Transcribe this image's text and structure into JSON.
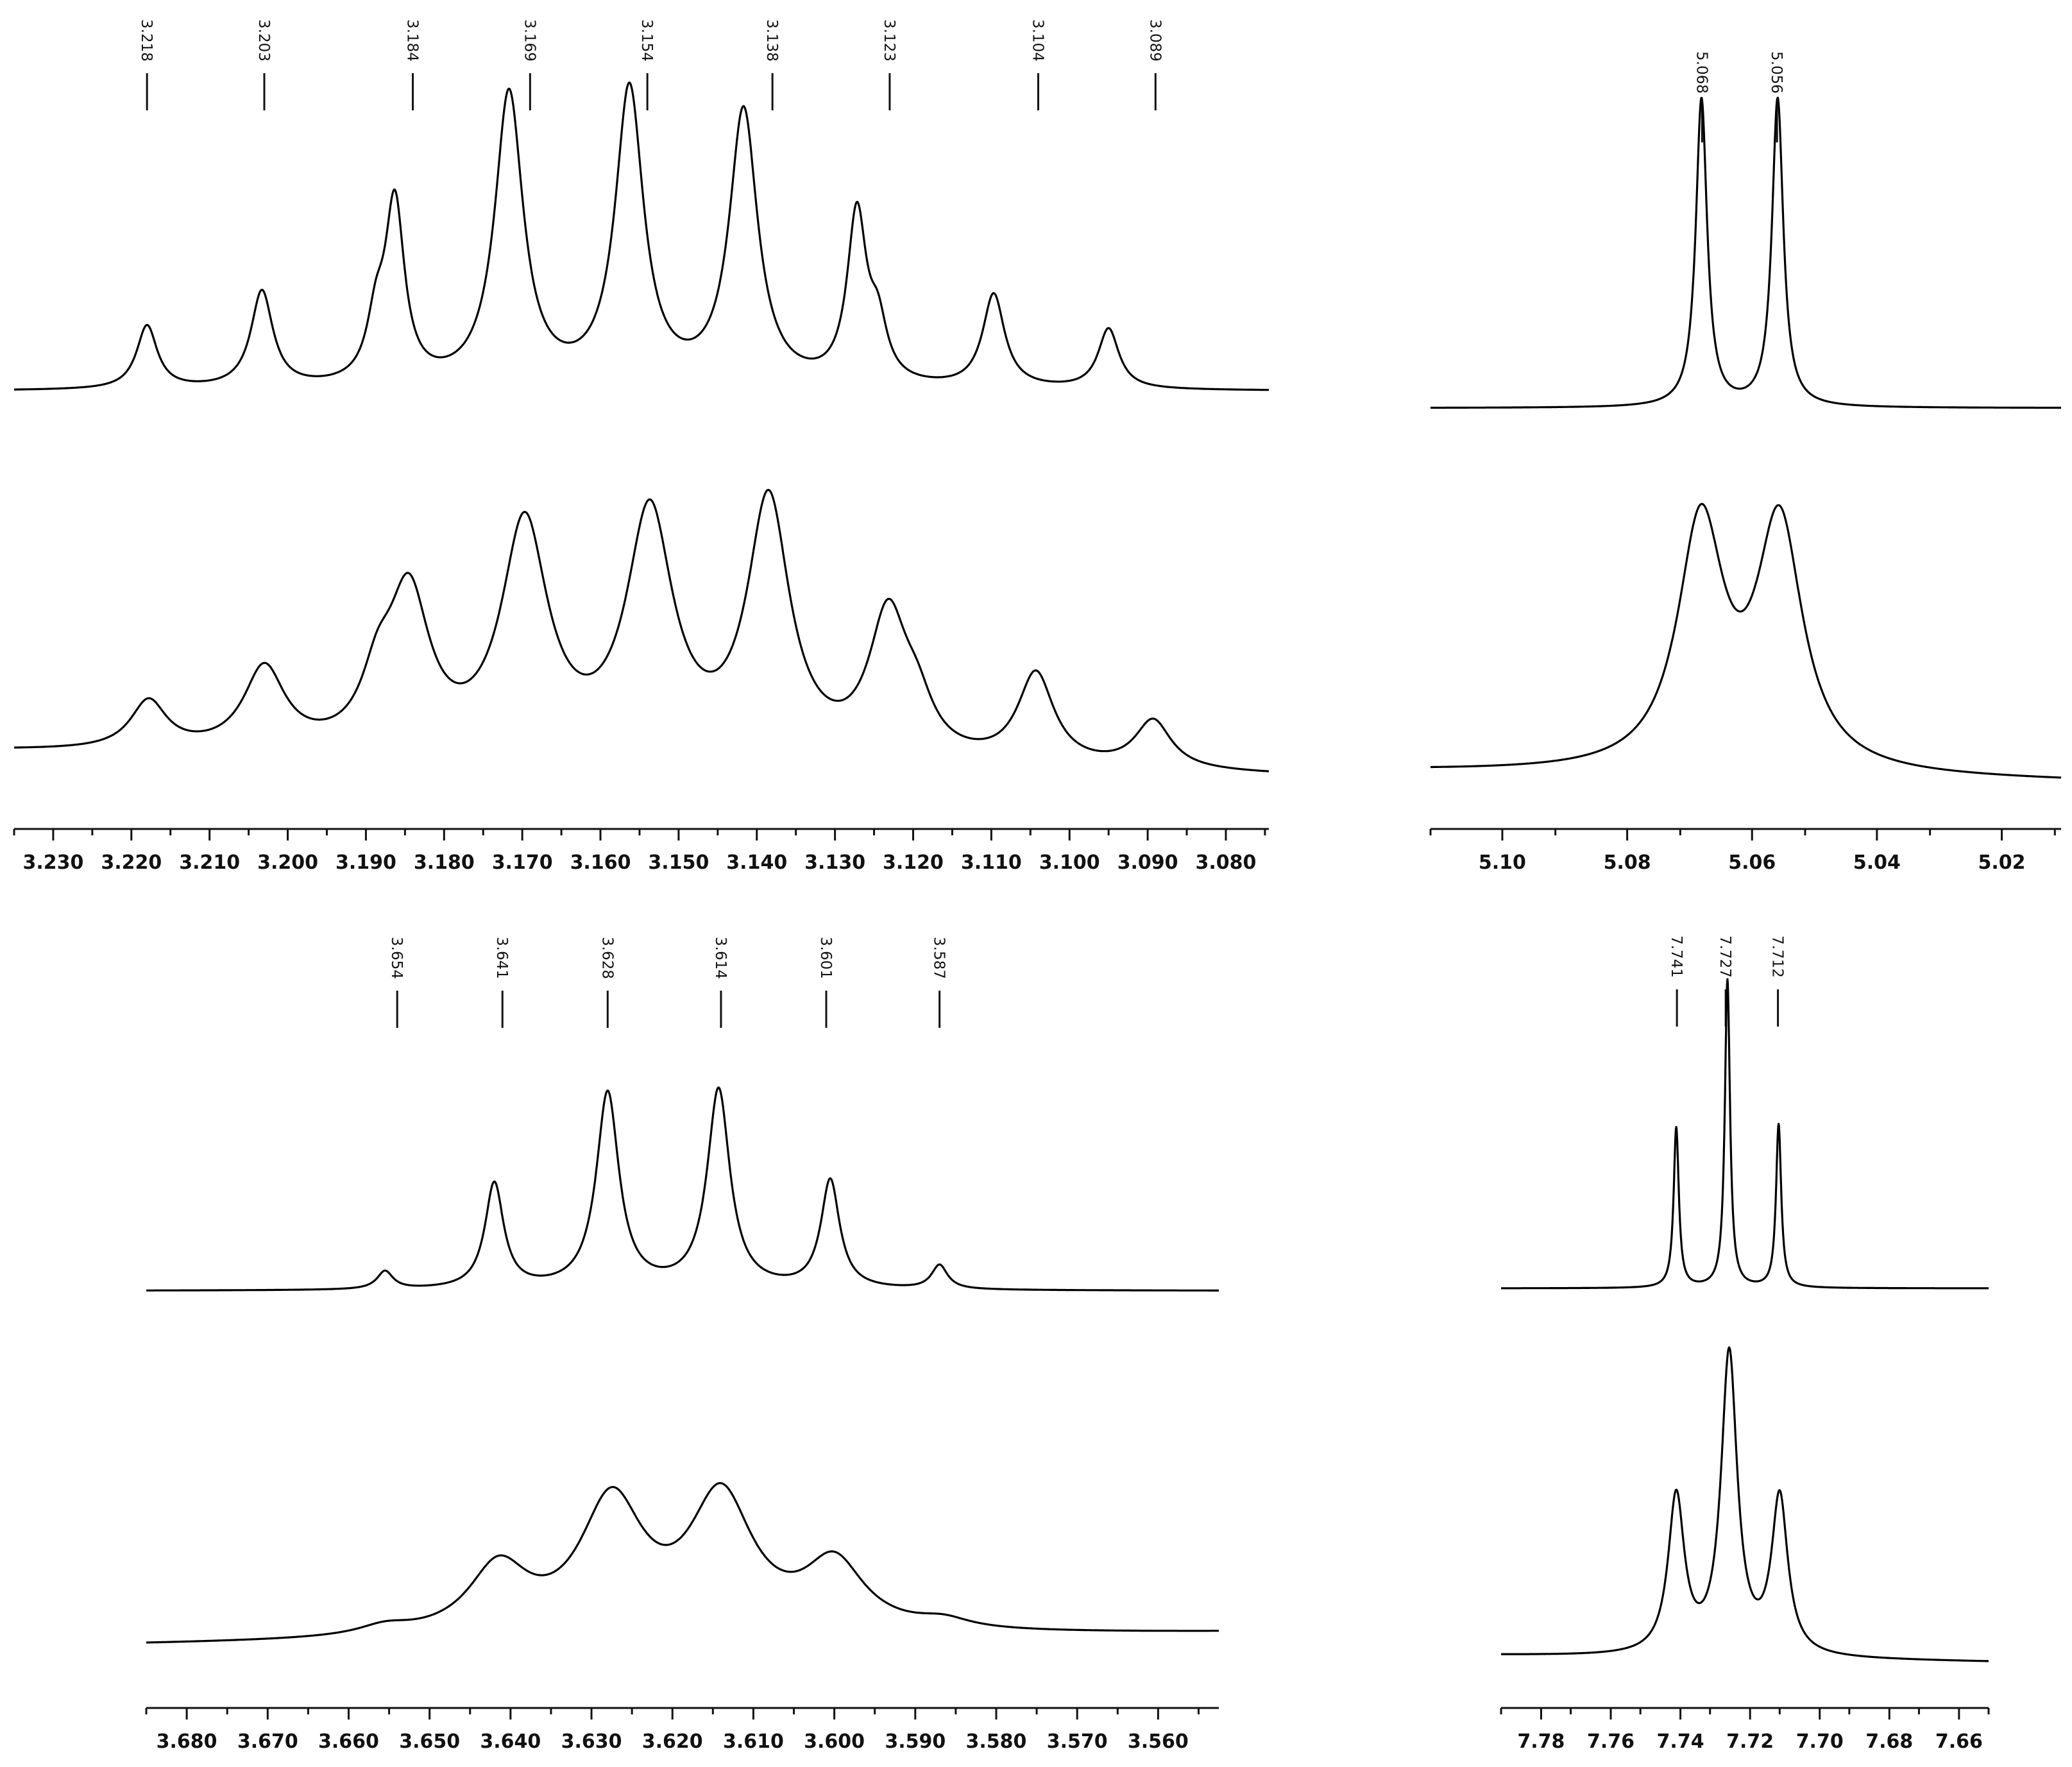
{
  "chart_data": [
    {
      "type": "line",
      "xlabel": "",
      "ylabel": "",
      "xlim": [
        3.235,
        3.0745
      ],
      "x_reversed": true,
      "tick_labels": [
        "3.230",
        "3.220",
        "3.210",
        "3.200",
        "3.190",
        "3.180",
        "3.170",
        "3.160",
        "3.150",
        "3.140",
        "3.130",
        "3.120",
        "3.110",
        "3.100",
        "3.090",
        "3.080"
      ],
      "peak_labels": [
        "3.218",
        "3.203",
        "3.184",
        "3.169",
        "3.154",
        "3.138",
        "3.123",
        "3.104",
        "3.089"
      ],
      "series": [
        {
          "baseline": 0.0,
          "peaks": [
            {
              "x": 3.218,
              "h": 0.21,
              "w": 0.0016
            },
            {
              "x": 3.2033,
              "h": 0.32,
              "w": 0.0017
            },
            {
              "x": 3.1887,
              "h": 0.18,
              "w": 0.0014
            },
            {
              "x": 3.1863,
              "h": 0.59,
              "w": 0.0015
            },
            {
              "x": 3.1717,
              "h": 0.97,
              "w": 0.0022
            },
            {
              "x": 3.1563,
              "h": 0.98,
              "w": 0.0022
            },
            {
              "x": 3.1417,
              "h": 0.91,
              "w": 0.0022
            },
            {
              "x": 3.1272,
              "h": 0.56,
              "w": 0.0015
            },
            {
              "x": 3.1245,
              "h": 0.17,
              "w": 0.0014
            },
            {
              "x": 3.1097,
              "h": 0.31,
              "w": 0.0017
            },
            {
              "x": 3.095,
              "h": 0.2,
              "w": 0.0016
            }
          ]
        },
        {
          "baseline": 0.0,
          "tilt": -0.08,
          "peaks": [
            {
              "x": 3.2178,
              "h": 0.16,
              "w": 0.0028
            },
            {
              "x": 3.203,
              "h": 0.27,
              "w": 0.0032
            },
            {
              "x": 3.1885,
              "h": 0.18,
              "w": 0.0025
            },
            {
              "x": 3.1845,
              "h": 0.5,
              "w": 0.0032
            },
            {
              "x": 3.1697,
              "h": 0.75,
              "w": 0.0036
            },
            {
              "x": 3.1537,
              "h": 0.79,
              "w": 0.0036
            },
            {
              "x": 3.1385,
              "h": 0.84,
              "w": 0.0033
            },
            {
              "x": 3.1232,
              "h": 0.46,
              "w": 0.003
            },
            {
              "x": 3.1195,
              "h": 0.13,
              "w": 0.0025
            },
            {
              "x": 3.1043,
              "h": 0.3,
              "w": 0.0028
            },
            {
              "x": 3.0893,
              "h": 0.16,
              "w": 0.0028
            }
          ]
        }
      ]
    },
    {
      "type": "line",
      "xlabel": "",
      "ylabel": "",
      "xlim": [
        5.1115,
        5.0105
      ],
      "x_reversed": true,
      "tick_labels": [
        "5.10",
        "5.08",
        "5.06",
        "5.04",
        "5.02"
      ],
      "peak_labels": [
        "5.068",
        "5.056"
      ],
      "series": [
        {
          "baseline": 0.0,
          "peaks": [
            {
              "x": 5.0681,
              "h": 1.0,
              "w": 0.0011
            },
            {
              "x": 5.0559,
              "h": 1.0,
              "w": 0.0011
            }
          ]
        },
        {
          "baseline": 0.0,
          "tilt": -0.04,
          "peaks": [
            {
              "x": 5.0682,
              "h": 0.95,
              "w": 0.0045
            },
            {
              "x": 5.0556,
              "h": 0.95,
              "w": 0.0045
            }
          ]
        }
      ]
    },
    {
      "type": "line",
      "xlabel": "",
      "ylabel": "",
      "xlim": [
        3.685,
        3.5525
      ],
      "x_reversed": true,
      "tick_labels": [
        "3.680",
        "3.670",
        "3.660",
        "3.650",
        "3.640",
        "3.630",
        "3.620",
        "3.610",
        "3.600",
        "3.590",
        "3.580",
        "3.570",
        "3.560"
      ],
      "peak_labels": [
        "3.654",
        "3.641",
        "3.628",
        "3.614",
        "3.601",
        "3.587"
      ],
      "series": [
        {
          "baseline": 0.0,
          "peaks": [
            {
              "x": 3.6555,
              "h": 0.06,
              "w": 0.0012
            },
            {
              "x": 3.642,
              "h": 0.35,
              "w": 0.0014
            },
            {
              "x": 3.628,
              "h": 0.65,
              "w": 0.0017
            },
            {
              "x": 3.6143,
              "h": 0.66,
              "w": 0.0017
            },
            {
              "x": 3.6005,
              "h": 0.36,
              "w": 0.0014
            },
            {
              "x": 3.587,
              "h": 0.08,
              "w": 0.0012
            }
          ]
        },
        {
          "baseline": 0.0,
          "tilt": 0.04,
          "peaks": [
            {
              "x": 3.6555,
              "h": 0.03,
              "w": 0.004
            },
            {
              "x": 3.6415,
              "h": 0.22,
              "w": 0.0045
            },
            {
              "x": 3.6275,
              "h": 0.43,
              "w": 0.0048
            },
            {
              "x": 3.614,
              "h": 0.44,
              "w": 0.0048
            },
            {
              "x": 3.6,
              "h": 0.22,
              "w": 0.0045
            },
            {
              "x": 3.5865,
              "h": 0.03,
              "w": 0.004
            }
          ]
        }
      ]
    },
    {
      "type": "line",
      "xlabel": "",
      "ylabel": "",
      "xlim": [
        7.7915,
        7.6515
      ],
      "x_reversed": true,
      "tick_labels": [
        "7.78",
        "7.76",
        "7.74",
        "7.72",
        "7.70",
        "7.68",
        "7.66"
      ],
      "peak_labels": [
        "7.741",
        "7.727",
        "7.712"
      ],
      "series": [
        {
          "baseline": 0.0,
          "peaks": [
            {
              "x": 7.7412,
              "h": 0.52,
              "w": 0.0009
            },
            {
              "x": 7.7265,
              "h": 1.0,
              "w": 0.0009
            },
            {
              "x": 7.7118,
              "h": 0.53,
              "w": 0.0009
            }
          ]
        },
        {
          "baseline": 0.0,
          "tilt": -0.02,
          "peaks": [
            {
              "x": 7.7412,
              "h": 0.47,
              "w": 0.0028
            },
            {
              "x": 7.726,
              "h": 0.9,
              "w": 0.0028
            },
            {
              "x": 7.7115,
              "h": 0.47,
              "w": 0.0028
            }
          ]
        }
      ]
    }
  ]
}
